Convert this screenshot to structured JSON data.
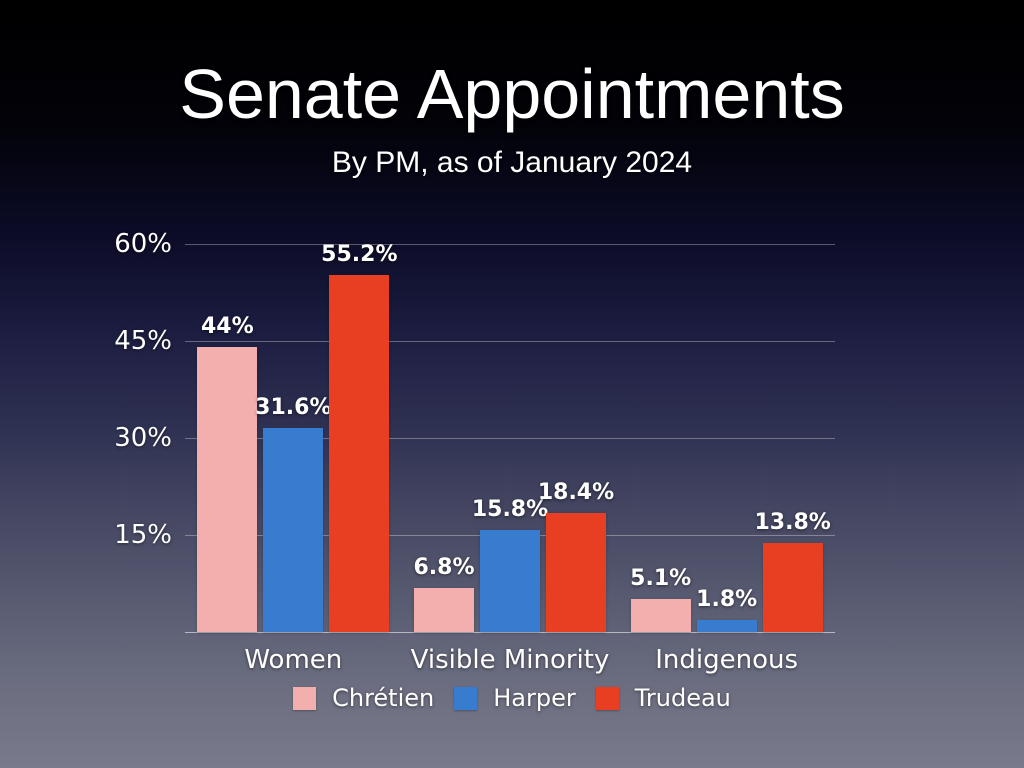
{
  "slide": {
    "title": "Senate Appointments",
    "subtitle": "By PM, as of January 2024"
  },
  "colors": {
    "text": "#ffffff",
    "grid_line": "rgba(255,255,255,0.32)",
    "axis_line": "rgba(255,255,255,0.55)",
    "background_gradient": [
      "#000000 0%",
      "#020208 16%",
      "#0b0b26 30%",
      "#1a1b3e 42%",
      "#2e3052 55%",
      "#474964 68%",
      "#5c5e74 80%",
      "#6e7082 91%",
      "#797b8d 100%"
    ]
  },
  "chart_data": {
    "type": "bar",
    "title": "Senate Appointments",
    "subtitle": "By PM, as of January 2024",
    "categories": [
      "Women",
      "Visible Minority",
      "Indigenous"
    ],
    "series": [
      {
        "name": "Chrétien",
        "color": "#F3AFAE",
        "values": [
          44,
          6.8,
          5.1
        ],
        "labels": [
          "44%",
          "6.8%",
          "5.1%"
        ]
      },
      {
        "name": "Harper",
        "color": "#377CCF",
        "values": [
          31.6,
          15.8,
          1.8
        ],
        "labels": [
          "31.6%",
          "15.8%",
          "1.8%"
        ]
      },
      {
        "name": "Trudeau",
        "color": "#E83E22",
        "values": [
          55.2,
          18.4,
          13.8
        ],
        "labels": [
          "55.2%",
          "18.4%",
          "13.8%"
        ]
      }
    ],
    "value_suffix": "%",
    "y_axis": {
      "min": 0,
      "max": 60,
      "ticks": [
        15,
        30,
        45,
        60
      ],
      "tick_labels": [
        "15%",
        "30%",
        "45%",
        "60%"
      ]
    },
    "grid": true,
    "legend_position": "bottom"
  }
}
